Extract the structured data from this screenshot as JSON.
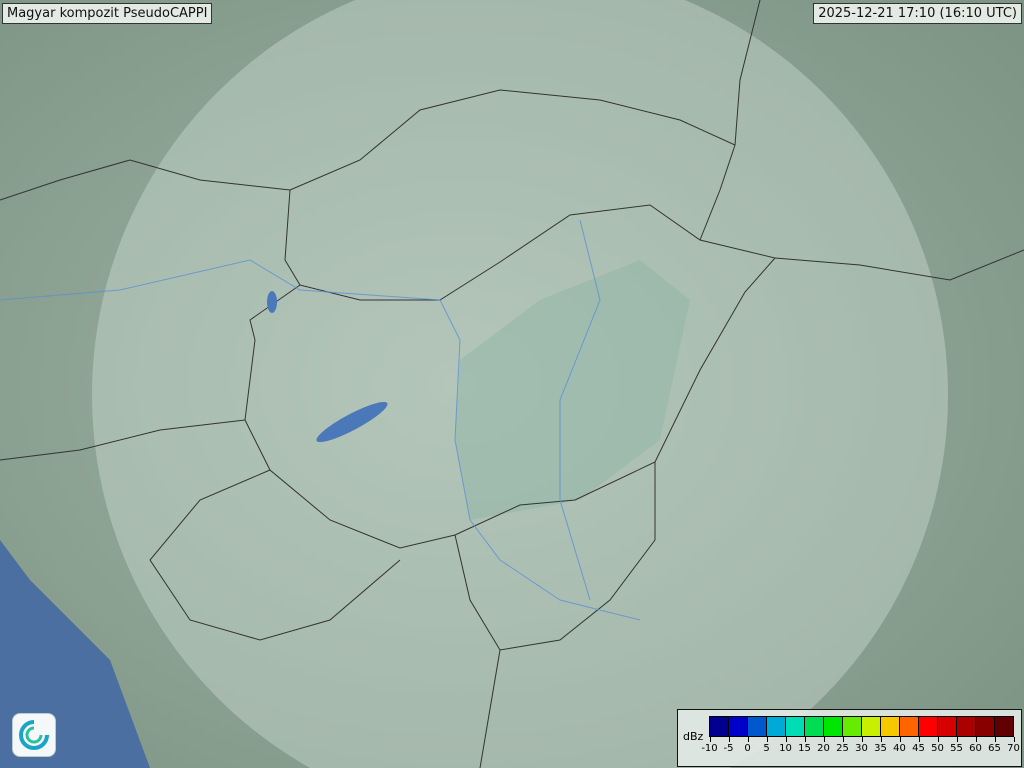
{
  "header": {
    "title": "Magyar kompozit  PseudoCAPPI",
    "timestamp": "2025-12-21 17:10 (16:10 UTC)"
  },
  "legend": {
    "unit": "dBz",
    "ticks": [
      "-10",
      "-5",
      "0",
      "5",
      "10",
      "15",
      "20",
      "25",
      "30",
      "35",
      "40",
      "45",
      "50",
      "55",
      "60",
      "65",
      "70"
    ],
    "colors": [
      "#00008f",
      "#0000cc",
      "#0058cc",
      "#00aad8",
      "#00dcb4",
      "#00dd55",
      "#00e600",
      "#66ec00",
      "#c8ee00",
      "#f5c800",
      "#ff6400",
      "#ff0000",
      "#d60000",
      "#aa0000",
      "#880000",
      "#600000"
    ]
  },
  "map": {
    "colors": {
      "terrain": "#8fa394",
      "radar_coverage": "#c8dcd4",
      "water": "#4a6fa0",
      "rivers": "#5b8fd6",
      "borders": "#333333"
    }
  },
  "logo": {
    "icon": "met-service-swirl-icon"
  }
}
